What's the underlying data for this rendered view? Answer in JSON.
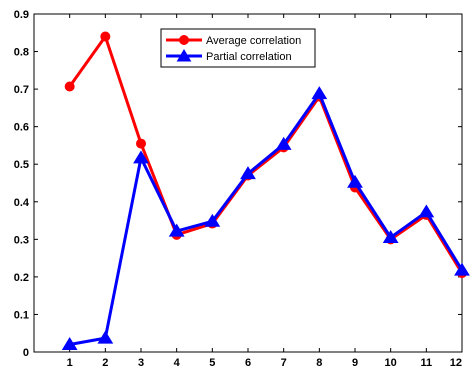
{
  "chart_data": {
    "type": "line",
    "x": [
      1,
      2,
      3,
      4,
      5,
      6,
      7,
      8,
      9,
      10,
      11,
      12
    ],
    "xlim": [
      0,
      12
    ],
    "ylim": [
      0,
      0.9
    ],
    "xticks": [
      1,
      2,
      3,
      4,
      5,
      6,
      7,
      8,
      9,
      10,
      11,
      12
    ],
    "yticks": [
      0,
      0.1,
      0.2,
      0.3,
      0.4,
      0.5,
      0.6,
      0.7,
      0.8,
      0.9
    ],
    "ytick_labels": [
      "0",
      "0.1",
      "0.2",
      "0.3",
      "0.4",
      "0.5",
      "0.6",
      "0.7",
      "0.8",
      "0.9"
    ],
    "grid": false,
    "legend_position": "top-center",
    "series": [
      {
        "name": "Average correlation",
        "color": "#ff0000",
        "marker": "circle",
        "values": [
          0.707,
          0.84,
          0.555,
          0.312,
          0.342,
          0.47,
          0.545,
          0.68,
          0.438,
          0.3,
          0.365,
          0.21
        ]
      },
      {
        "name": "Partial correlation",
        "color": "#0000ff",
        "marker": "triangle",
        "values": [
          0.02,
          0.037,
          0.517,
          0.322,
          0.348,
          0.475,
          0.553,
          0.688,
          0.452,
          0.305,
          0.373,
          0.218
        ]
      }
    ]
  }
}
